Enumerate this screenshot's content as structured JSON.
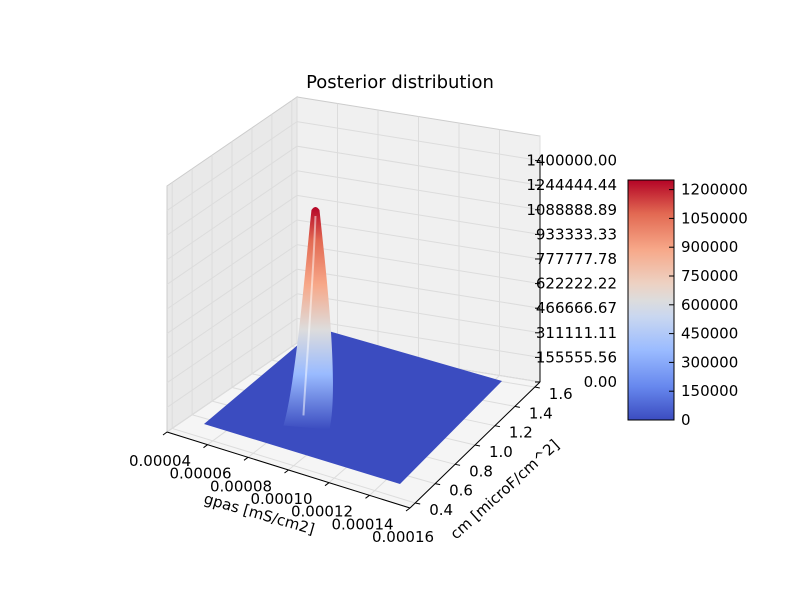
{
  "chart_data": {
    "type": "surface3d",
    "title": "Posterior distribution",
    "xlabel": "gpas [mS/cm2]",
    "ylabel": "cm [microF/cm^2]",
    "zlabel": "",
    "x_ticks": [
      "0.00004",
      "0.00006",
      "0.00008",
      "0.00010",
      "0.00012",
      "0.00014",
      "0.00016"
    ],
    "y_ticks": [
      "0.4",
      "0.6",
      "0.8",
      "1.0",
      "1.2",
      "1.4",
      "1.6"
    ],
    "z_ticks": [
      "0.00",
      "155555.56",
      "311111.11",
      "466666.67",
      "622222.22",
      "777777.78",
      "933333.33",
      "1088888.89",
      "1244444.44",
      "1400000.00"
    ],
    "xlim": [
      4e-05,
      0.00016
    ],
    "ylim": [
      0.4,
      1.7
    ],
    "zlim": [
      0,
      1400000
    ],
    "peak": {
      "x": 7.33e-05,
      "y": 1.0,
      "z": 1250000
    },
    "grid": true,
    "colormap": "coolwarm",
    "colorbar": {
      "ticks": [
        "0",
        "150000",
        "300000",
        "450000",
        "600000",
        "750000",
        "900000",
        "1050000",
        "1200000"
      ],
      "min": 0,
      "max": 1250000,
      "colors": [
        "#3b4cc0",
        "#6788ee",
        "#9abbff",
        "#c9d7f0",
        "#edd1c2",
        "#f7a889",
        "#e26952",
        "#b40426"
      ]
    }
  }
}
